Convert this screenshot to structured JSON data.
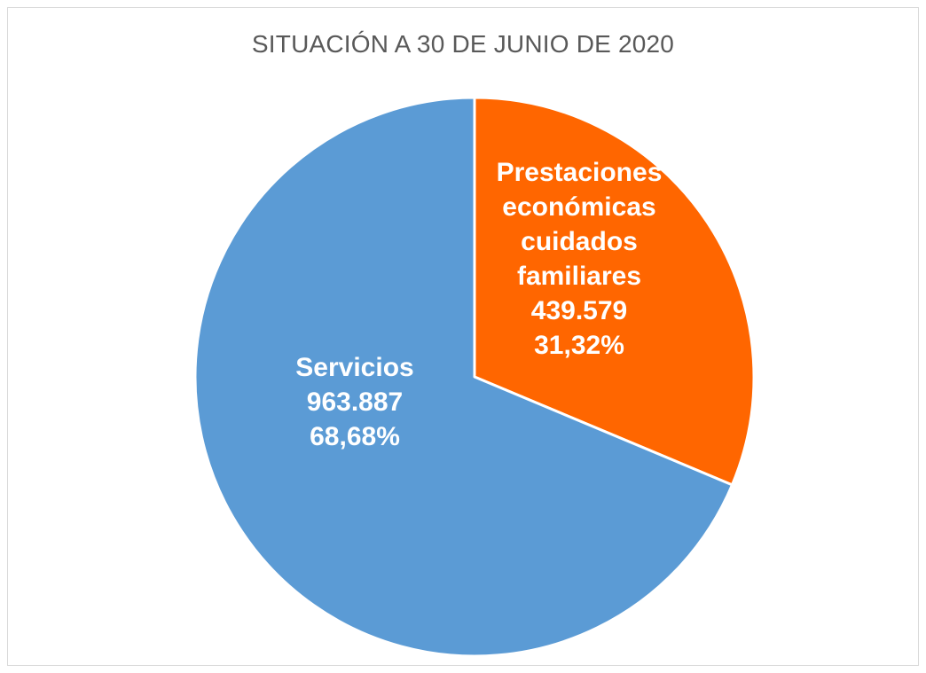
{
  "chart_data": {
    "type": "pie",
    "title": "SITUACIÓN A 30 DE JUNIO DE 2020",
    "slices": [
      {
        "label_lines": [
          "Prestaciones",
          "económicas",
          "cuidados",
          "familiares"
        ],
        "value": 439579,
        "value_label": "439.579",
        "percent": 31.32,
        "percent_label": "31,32%",
        "color": "#ff6600"
      },
      {
        "label_lines": [
          "Servicios"
        ],
        "value": 963887,
        "value_label": "963.887",
        "percent": 68.68,
        "percent_label": "68,68%",
        "color": "#5b9bd5"
      }
    ],
    "start": "12 o'clock",
    "direction": "clockwise",
    "legend": "none",
    "separator_color": "#ffffff"
  }
}
